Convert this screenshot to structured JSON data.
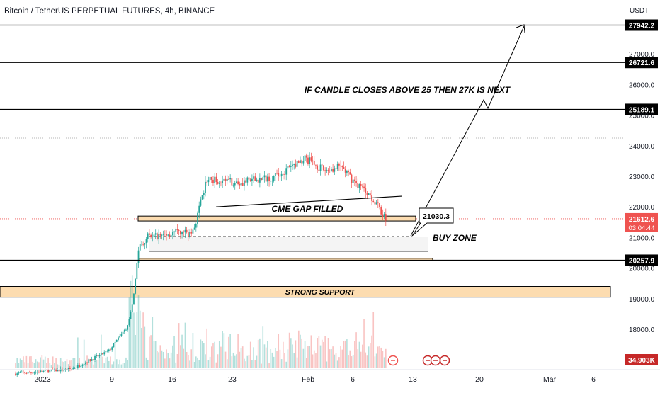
{
  "header": {
    "title": "Bitcoin / TetherUS PERPETUAL FUTURES, 4h, BINANCE",
    "price_unit": "USDT"
  },
  "colors": {
    "up": "#26a69a",
    "down": "#ef5350",
    "line": "#000000",
    "zone_fill": "#fcdcb0",
    "current_price_bg": "#ef5350",
    "volume_label_bg": "#c62828"
  },
  "chart_data": {
    "type": "candlestick",
    "symbol": "Bitcoin / TetherUS PERPETUAL FUTURES",
    "timeframe": "4h",
    "exchange": "BINANCE",
    "y_axis": {
      "ticks": [
        18000,
        19000,
        20000,
        21000,
        22000,
        23000,
        24000,
        25000,
        26000,
        27000
      ],
      "tick_labels": [
        "18000.0",
        "19000.0",
        "20000.0",
        "21000.0",
        "22000.0",
        "23000.0",
        "24000.0",
        "25000.0",
        "26000.0",
        "27000.0"
      ],
      "range": [
        16900,
        28800
      ]
    },
    "x_axis": {
      "tick_labels": [
        "2023",
        "9",
        "16",
        "23",
        "Feb",
        "6",
        "13",
        "20",
        "Mar",
        "6"
      ]
    },
    "candle_range": {
      "start": "2023-01-01",
      "end": "2023-02-09"
    },
    "price_path": [
      {
        "t": 0,
        "p": 16550
      },
      {
        "t": 6,
        "p": 16700
      },
      {
        "t": 10,
        "p": 17300
      },
      {
        "t": 12,
        "p": 18100
      },
      {
        "t": 12.6,
        "p": 19000
      },
      {
        "t": 13.2,
        "p": 20700
      },
      {
        "t": 14,
        "p": 21000
      },
      {
        "t": 17,
        "p": 21150
      },
      {
        "t": 19,
        "p": 21150
      },
      {
        "t": 20.5,
        "p": 22900
      },
      {
        "t": 24,
        "p": 22800
      },
      {
        "t": 28,
        "p": 23000
      },
      {
        "t": 31,
        "p": 23600
      },
      {
        "t": 33,
        "p": 23200
      },
      {
        "t": 35,
        "p": 23300
      },
      {
        "t": 36,
        "p": 22900
      },
      {
        "t": 38,
        "p": 22400
      },
      {
        "t": 39.7,
        "p": 21600
      }
    ],
    "horizontal_levels": [
      {
        "price": 27942.2,
        "label": "27942.2"
      },
      {
        "price": 26721.6,
        "label": "26721.6"
      },
      {
        "price": 25189.1,
        "label": "25189.1"
      },
      {
        "price": 20257.9,
        "label": "20257.9"
      }
    ],
    "current_price": {
      "price": 21612.6,
      "label": "21612.6",
      "countdown": "03:04:44"
    },
    "volume_label": "34.903K",
    "zones": [
      {
        "name": "strong-support",
        "label": "STRONG SUPPORT",
        "low": 19050,
        "high": 19400
      },
      {
        "name": "upper-gap-zone",
        "low": 21540,
        "high": 21700
      },
      {
        "name": "lower-gap-zone",
        "low": 20240,
        "high": 20320
      }
    ],
    "annotations": [
      {
        "text": "IF CANDLE CLOSES ABOVE 25 THEN 27K IS NEXT"
      },
      {
        "text": "CME GAP FILLED"
      },
      {
        "text": "BUY ZONE"
      },
      {
        "text": "21030.3",
        "price": 21030.3
      }
    ],
    "grid": false,
    "legend": "none"
  }
}
